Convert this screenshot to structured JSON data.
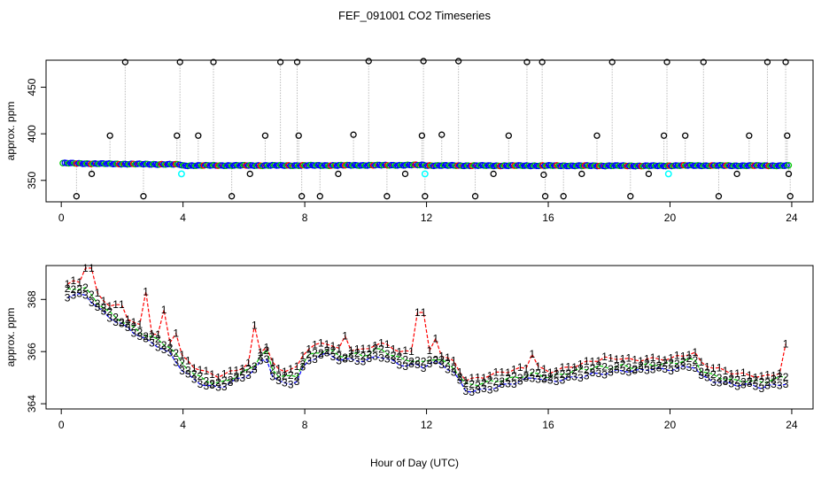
{
  "figure": {
    "title": "FEF_091001  CO2 Timeseries",
    "xlabel": "Hour of Day (UTC)"
  },
  "colors": {
    "black": "#000000",
    "blue": "#0000ff",
    "red": "#ff0000",
    "green": "#00cc00",
    "cyan": "#00ffff",
    "purple": "#a000c0",
    "orange": "#ff8000",
    "connector": "#bbbbbb"
  },
  "chart_data": [
    {
      "type": "scatter",
      "name": "top",
      "ylabel": "approx. ppm",
      "xlim": [
        -0.5,
        24.7
      ],
      "ylim": [
        327,
        479
      ],
      "xticks": [
        0,
        4,
        8,
        12,
        16,
        20,
        24
      ],
      "yticks": [
        350,
        400,
        450
      ],
      "baseline": {
        "x": [
          0.1,
          0.5,
          1.0,
          1.5,
          2.0,
          2.5,
          3.0,
          3.5,
          3.9,
          4.0,
          4.5,
          5.0,
          6.0,
          7.0,
          8.0,
          9.0,
          10.0,
          11.0,
          11.9,
          12.0,
          13.0,
          14.0,
          15.0,
          16.0,
          17.0,
          18.0,
          19.0,
          19.9,
          20.0,
          21.0,
          22.0,
          23.0,
          23.8
        ],
        "y": [
          368.5,
          368.2,
          368.0,
          367.8,
          367.6,
          367.5,
          367.3,
          367.2,
          367.0,
          365.8,
          366.0,
          366.0,
          366.0,
          366.0,
          366.0,
          366.1,
          366.2,
          366.3,
          366.5,
          366.0,
          365.9,
          365.8,
          365.8,
          365.8,
          365.7,
          365.7,
          365.6,
          365.6,
          365.9,
          365.9,
          365.8,
          365.8,
          365.8
        ]
      },
      "outliers": {
        "x": [
          0.5,
          1.0,
          1.6,
          2.1,
          2.7,
          3.8,
          3.9,
          4.5,
          5.0,
          5.6,
          6.2,
          6.7,
          7.2,
          7.75,
          7.8,
          7.9,
          8.5,
          9.1,
          9.6,
          10.1,
          10.7,
          11.3,
          11.85,
          11.9,
          11.95,
          12.5,
          13.05,
          13.6,
          14.2,
          14.7,
          15.3,
          15.8,
          15.85,
          15.9,
          16.5,
          17.1,
          17.6,
          18.1,
          18.7,
          19.3,
          19.8,
          19.9,
          20.5,
          21.1,
          21.6,
          22.2,
          22.6,
          23.2,
          23.8,
          23.85,
          23.9,
          23.95
        ],
        "y": [
          333,
          357,
          398,
          477,
          333,
          398,
          477,
          398,
          477,
          333,
          357,
          398,
          477,
          477,
          398,
          333,
          333,
          357,
          399,
          478,
          333,
          357,
          398,
          478,
          333,
          399,
          478,
          333,
          357,
          398,
          477,
          477,
          356,
          333,
          333,
          357,
          398,
          477,
          333,
          357,
          398,
          477,
          398,
          477,
          333,
          357,
          398,
          477,
          477,
          398,
          357,
          333
        ]
      },
      "cyan_points": {
        "x": [
          3.95,
          11.95,
          19.95
        ],
        "y": [
          357,
          357,
          357
        ]
      }
    },
    {
      "type": "line",
      "name": "bottom",
      "ylabel": "approx. ppm",
      "xlim": [
        -0.5,
        24.7
      ],
      "ylim": [
        363.8,
        369.3
      ],
      "xticks": [
        0,
        4,
        8,
        12,
        16,
        20,
        24
      ],
      "yticks": [
        364,
        366,
        368
      ],
      "marker_labels": [
        "1",
        "2",
        "3"
      ],
      "trend": {
        "x": [
          0.1,
          0.4,
          0.8,
          1.2,
          1.6,
          2.0,
          2.4,
          2.8,
          3.2,
          3.6,
          4.0,
          4.4,
          4.8,
          5.2,
          5.6,
          6.0,
          6.4,
          6.7,
          7.0,
          7.4,
          7.8,
          8.0,
          8.4,
          8.8,
          9.2,
          9.6,
          10.0,
          10.4,
          10.8,
          11.2,
          11.6,
          11.9,
          12.2,
          12.6,
          13.0,
          13.2,
          13.6,
          14.0,
          14.4,
          14.8,
          15.2,
          15.6,
          16.0,
          16.4,
          16.8,
          17.2,
          17.6,
          18.0,
          18.4,
          18.8,
          19.2,
          19.6,
          20.0,
          20.4,
          20.8,
          21.0,
          21.4,
          21.8,
          22.2,
          22.6,
          23.0,
          23.4,
          23.8
        ],
        "y": [
          368.1,
          368.2,
          368.2,
          367.7,
          367.3,
          367.0,
          366.7,
          366.4,
          366.2,
          365.9,
          365.3,
          364.9,
          364.7,
          364.6,
          364.8,
          365.0,
          365.3,
          365.9,
          364.9,
          364.8,
          364.9,
          365.6,
          365.8,
          365.9,
          365.6,
          365.7,
          365.6,
          365.9,
          365.7,
          365.5,
          365.5,
          365.4,
          365.6,
          365.4,
          365.1,
          364.5,
          364.5,
          364.6,
          364.7,
          364.8,
          364.9,
          365.0,
          364.8,
          364.9,
          365.0,
          365.1,
          365.2,
          365.2,
          365.3,
          365.2,
          365.3,
          365.3,
          365.3,
          365.4,
          365.5,
          365.1,
          364.9,
          364.8,
          364.7,
          364.7,
          364.6,
          364.7,
          364.8
        ]
      },
      "spikes": {
        "x": [
          0.9,
          1.9,
          2.8,
          3.3,
          3.7,
          6.4,
          9.3,
          11.8,
          12.3,
          15.5,
          17.8,
          20.8,
          23.9
        ],
        "y": [
          369.2,
          367.8,
          368.3,
          367.6,
          366.7,
          367.0,
          366.6,
          367.5,
          366.5,
          365.9,
          365.8,
          365.6,
          366.3
        ]
      },
      "series": [
        {
          "name": "1",
          "offset": 0.45
        },
        {
          "name": "2",
          "offset": 0.2
        },
        {
          "name": "3",
          "offset": 0.0
        }
      ]
    }
  ]
}
